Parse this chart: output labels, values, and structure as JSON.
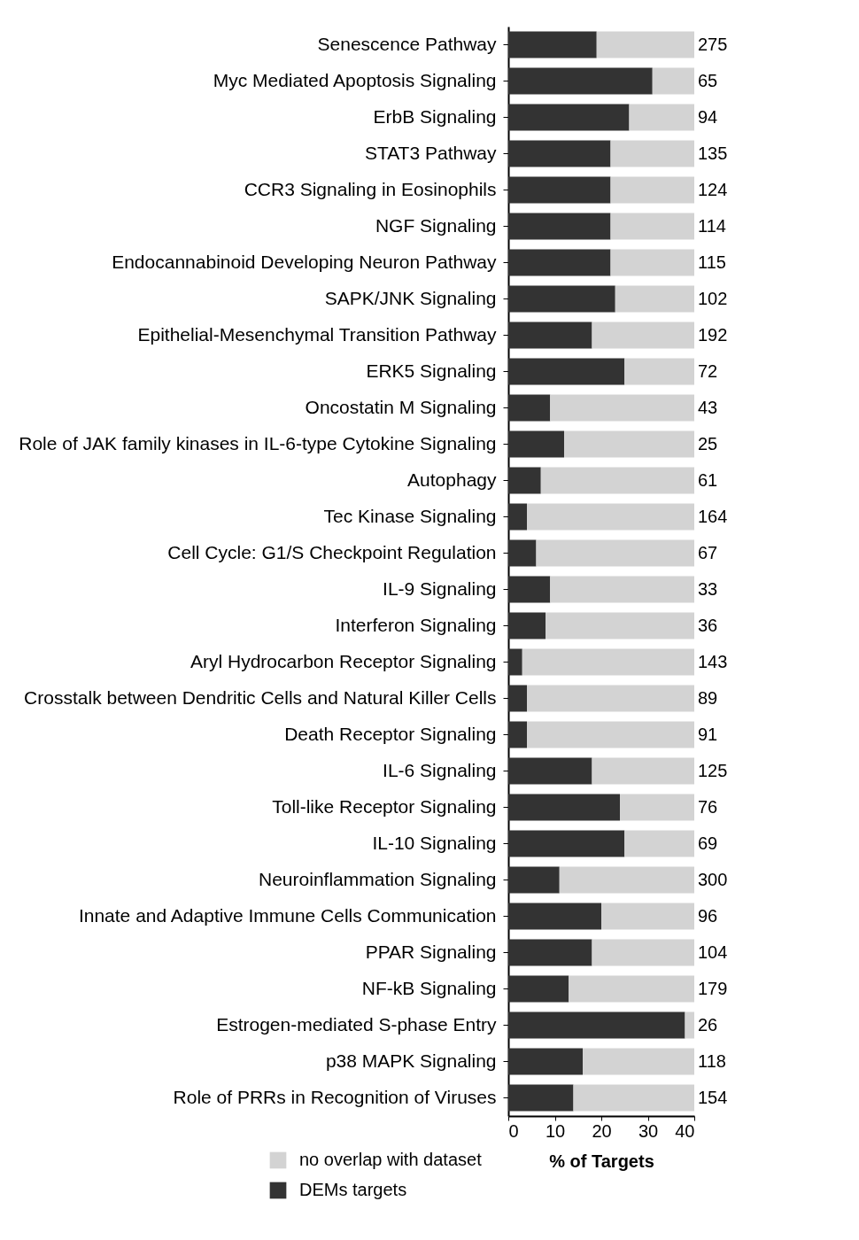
{
  "chart_data": {
    "type": "bar",
    "orientation": "horizontal",
    "stacked": true,
    "xlabel": "% of Targets",
    "legend": "bottom left",
    "categories": [
      "Senescence Pathway",
      "Myc Mediated Apoptosis Signaling",
      "ErbB Signaling",
      "STAT3 Pathway",
      "CCR3 Signaling in Eosinophils",
      "NGF Signaling",
      "Endocannabinoid Developing Neuron Pathway",
      "SAPK/JNK Signaling",
      "Epithelial-Mesenchymal Transition Pathway",
      "ERK5 Signaling",
      "Oncostatin M Signaling",
      "Role of JAK family kinases in IL-6-type Cytokine Signaling",
      "Autophagy",
      "Tec Kinase Signaling",
      "Cell Cycle: G1/S Checkpoint Regulation",
      "IL-9 Signaling",
      "Interferon Signaling",
      "Aryl Hydrocarbon Receptor Signaling",
      "Crosstalk between Dendritic Cells and Natural Killer Cells",
      "Death Receptor Signaling",
      "IL-6 Signaling",
      "Toll-like Receptor Signaling",
      "IL-10 Signaling",
      "Neuroinflammation Signaling",
      "Innate and Adaptive Immune Cells Communication",
      "PPAR Signaling",
      "NF-kB Signaling",
      "Estrogen-mediated S-phase Entry",
      "p38 MAPK Signaling",
      "Role of PRRs in Recognition of Viruses"
    ],
    "series": [
      {
        "name": "DEMs targets",
        "color": "#333333",
        "values": [
          19,
          31,
          26,
          22,
          22,
          22,
          22,
          23,
          18,
          25,
          9,
          12,
          7,
          4,
          6,
          9,
          8,
          3,
          4,
          4,
          18,
          24,
          25,
          11,
          20,
          18,
          13,
          38,
          16,
          14
        ]
      },
      {
        "name": "no overlap with dataset",
        "color": "#d3d3d3",
        "values": [
          21,
          9,
          14,
          18,
          18,
          18,
          18,
          17,
          22,
          15,
          31,
          28,
          33,
          36,
          34,
          31,
          32,
          37,
          36,
          36,
          22,
          16,
          15,
          29,
          20,
          22,
          27,
          2,
          24,
          26
        ]
      }
    ],
    "annotations": [
      "275",
      "65",
      "94",
      "135",
      "124",
      "114",
      "115",
      "102",
      "192",
      "72",
      "43",
      "25",
      "61",
      "164",
      "67",
      "33",
      "36",
      "143",
      "89",
      "91",
      "125",
      "76",
      "69",
      "300",
      "96",
      "104",
      "179",
      "26",
      "118",
      "154"
    ],
    "xlim": [
      0,
      40
    ],
    "xticks": [
      0,
      10,
      20,
      30,
      40
    ]
  }
}
